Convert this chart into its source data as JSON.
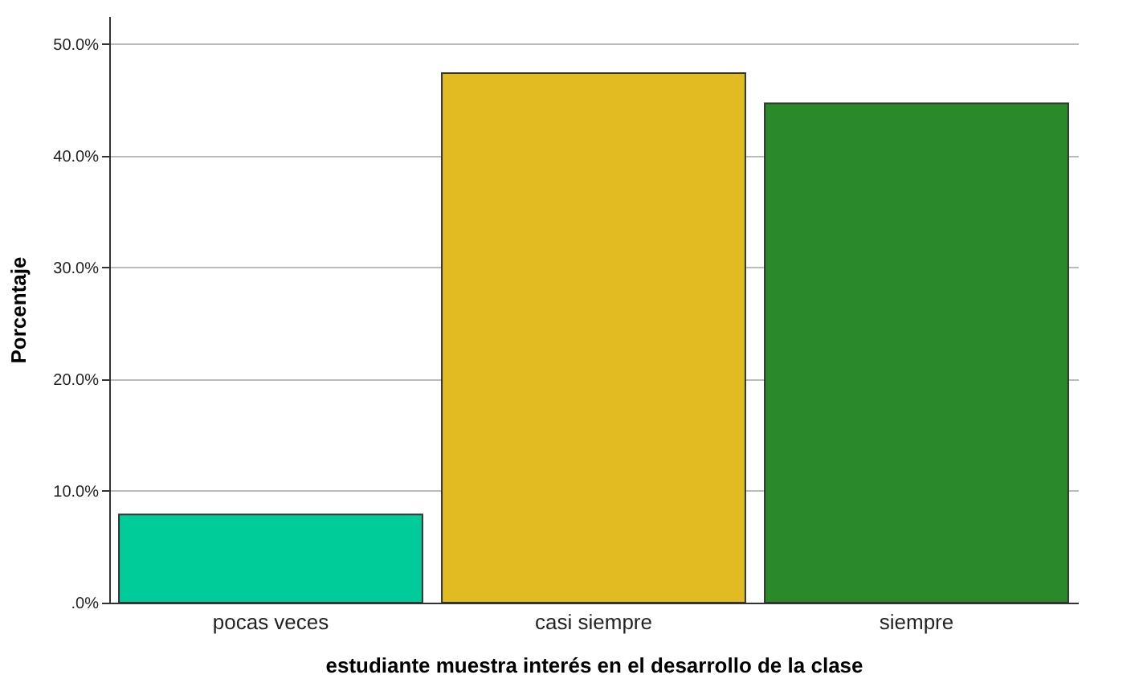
{
  "chart_data": {
    "type": "bar",
    "xlabel": "estudiante muestra interés en el desarrollo de la clase",
    "ylabel": "Porcentaje",
    "categories": [
      "pocas veces",
      "casi siempre",
      "siempre"
    ],
    "values": [
      7.9,
      47.4,
      44.7
    ],
    "colors": [
      "#00cc99",
      "#e0bc22",
      "#2a8a2a"
    ],
    "ylim": [
      0,
      52.5
    ],
    "yticks": [
      {
        "value": 0,
        "label": ".0%"
      },
      {
        "value": 10,
        "label": "10.0%"
      },
      {
        "value": 20,
        "label": "20.0%"
      },
      {
        "value": 30,
        "label": "30.0%"
      },
      {
        "value": 40,
        "label": "40.0%"
      },
      {
        "value": 50,
        "label": "50.0%"
      }
    ],
    "grid": "y"
  }
}
